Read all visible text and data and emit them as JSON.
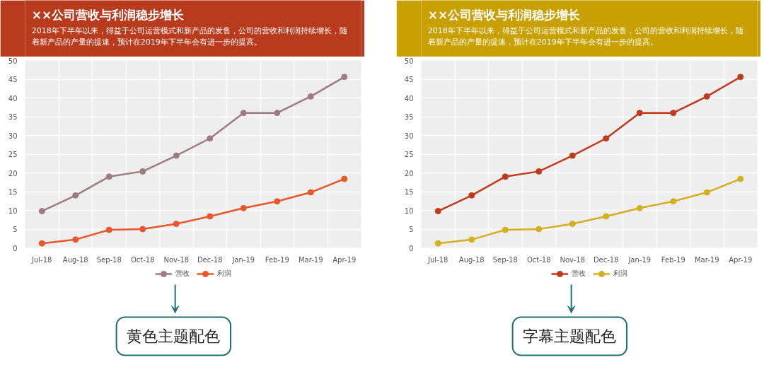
{
  "chart_data": [
    {
      "type": "line",
      "title": "××公司营收与利润稳步增长",
      "subtitle": "2018年下半年以来，得益于公司运营模式和新产品的发售，公司的营收和利润持续增长，随着新产品的产量的提速，预计在2019年下半年会有进一步的提高。",
      "categories": [
        "Jul-18",
        "Aug-18",
        "Sep-18",
        "Oct-18",
        "Nov-18",
        "Dec-18",
        "Jan-19",
        "Feb-19",
        "Mar-19",
        "Apr-19"
      ],
      "series": [
        {
          "name": "营收",
          "color": "#9e7b84",
          "values": [
            9.8,
            14,
            19,
            20.4,
            24.6,
            29.2,
            36,
            36,
            40.4,
            45.6
          ]
        },
        {
          "name": "利润",
          "color": "#e8562a",
          "values": [
            1.2,
            2.2,
            4.8,
            5,
            6.4,
            8.4,
            10.6,
            12.4,
            14.8,
            18.4
          ]
        }
      ],
      "ylim": [
        0,
        50
      ],
      "yticks": [
        0,
        5,
        10,
        15,
        20,
        25,
        30,
        35,
        40,
        45,
        50
      ],
      "grid": true,
      "legend": "bottom",
      "marker": "circle",
      "line_style": "solid",
      "annotations": [
        "黄色主题配色"
      ]
    },
    {
      "type": "line",
      "title": "××公司营收与利润稳步增长",
      "subtitle": "2018年下半年以来，得益于公司运营模式和新产品的发售，公司的营收和利润持续增长，随着新产品的产量的提速，预计在2019年下半年会有进一步的提高。",
      "categories": [
        "Jul-18",
        "Aug-18",
        "Sep-18",
        "Oct-18",
        "Nov-18",
        "Dec-18",
        "Jan-19",
        "Feb-19",
        "Mar-19",
        "Apr-19"
      ],
      "series": [
        {
          "name": "营收",
          "color": "#c0391b",
          "values": [
            9.8,
            14,
            19,
            20.4,
            24.6,
            29.2,
            36,
            36,
            40.4,
            45.6
          ]
        },
        {
          "name": "利润",
          "color": "#d4b021",
          "values": [
            1.2,
            2.2,
            4.8,
            5,
            6.4,
            8.4,
            10.6,
            12.4,
            14.8,
            18.4
          ]
        }
      ],
      "ylim": [
        0,
        50
      ],
      "yticks": [
        0,
        5,
        10,
        15,
        20,
        25,
        30,
        35,
        40,
        45,
        50
      ],
      "grid": true,
      "legend": "bottom",
      "marker": "circle",
      "line_style": "solid",
      "annotations": [
        "字幕主题配色"
      ]
    }
  ]
}
